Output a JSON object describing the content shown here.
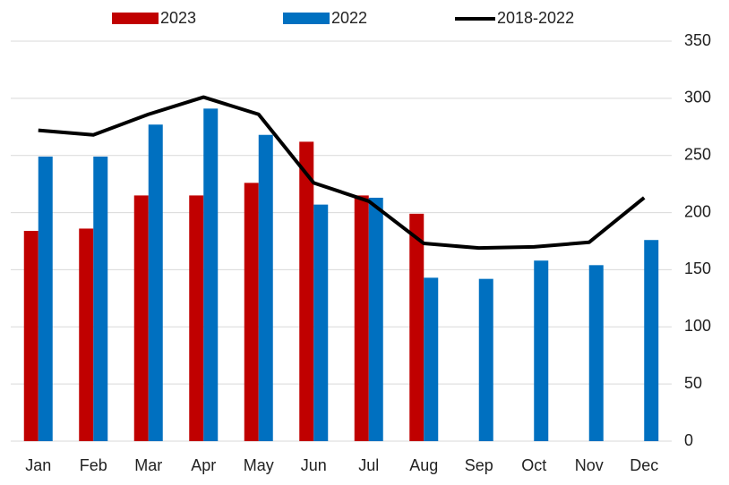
{
  "chart_data": {
    "type": "bar-line",
    "categories": [
      "Jan",
      "Feb",
      "Mar",
      "Apr",
      "May",
      "Jun",
      "Jul",
      "Aug",
      "Sep",
      "Oct",
      "Nov",
      "Dec"
    ],
    "series": [
      {
        "name": "2023",
        "type": "bar",
        "color": "#c00000",
        "values": [
          184,
          186,
          215,
          215,
          226,
          262,
          215,
          199,
          null,
          null,
          null,
          null
        ]
      },
      {
        "name": "2022",
        "type": "bar",
        "color": "#0070c0",
        "values": [
          249,
          249,
          277,
          291,
          268,
          207,
          213,
          143,
          142,
          158,
          154,
          176
        ]
      },
      {
        "name": "2018-2022",
        "type": "line",
        "color": "#000000",
        "values": [
          272,
          268,
          286,
          301,
          286,
          226,
          210,
          173,
          169,
          170,
          174,
          213
        ]
      }
    ],
    "ylim": [
      0,
      350
    ],
    "yticks": [
      0,
      50,
      100,
      150,
      200,
      250,
      300,
      350
    ],
    "grid": true,
    "y_axis_side": "right"
  }
}
